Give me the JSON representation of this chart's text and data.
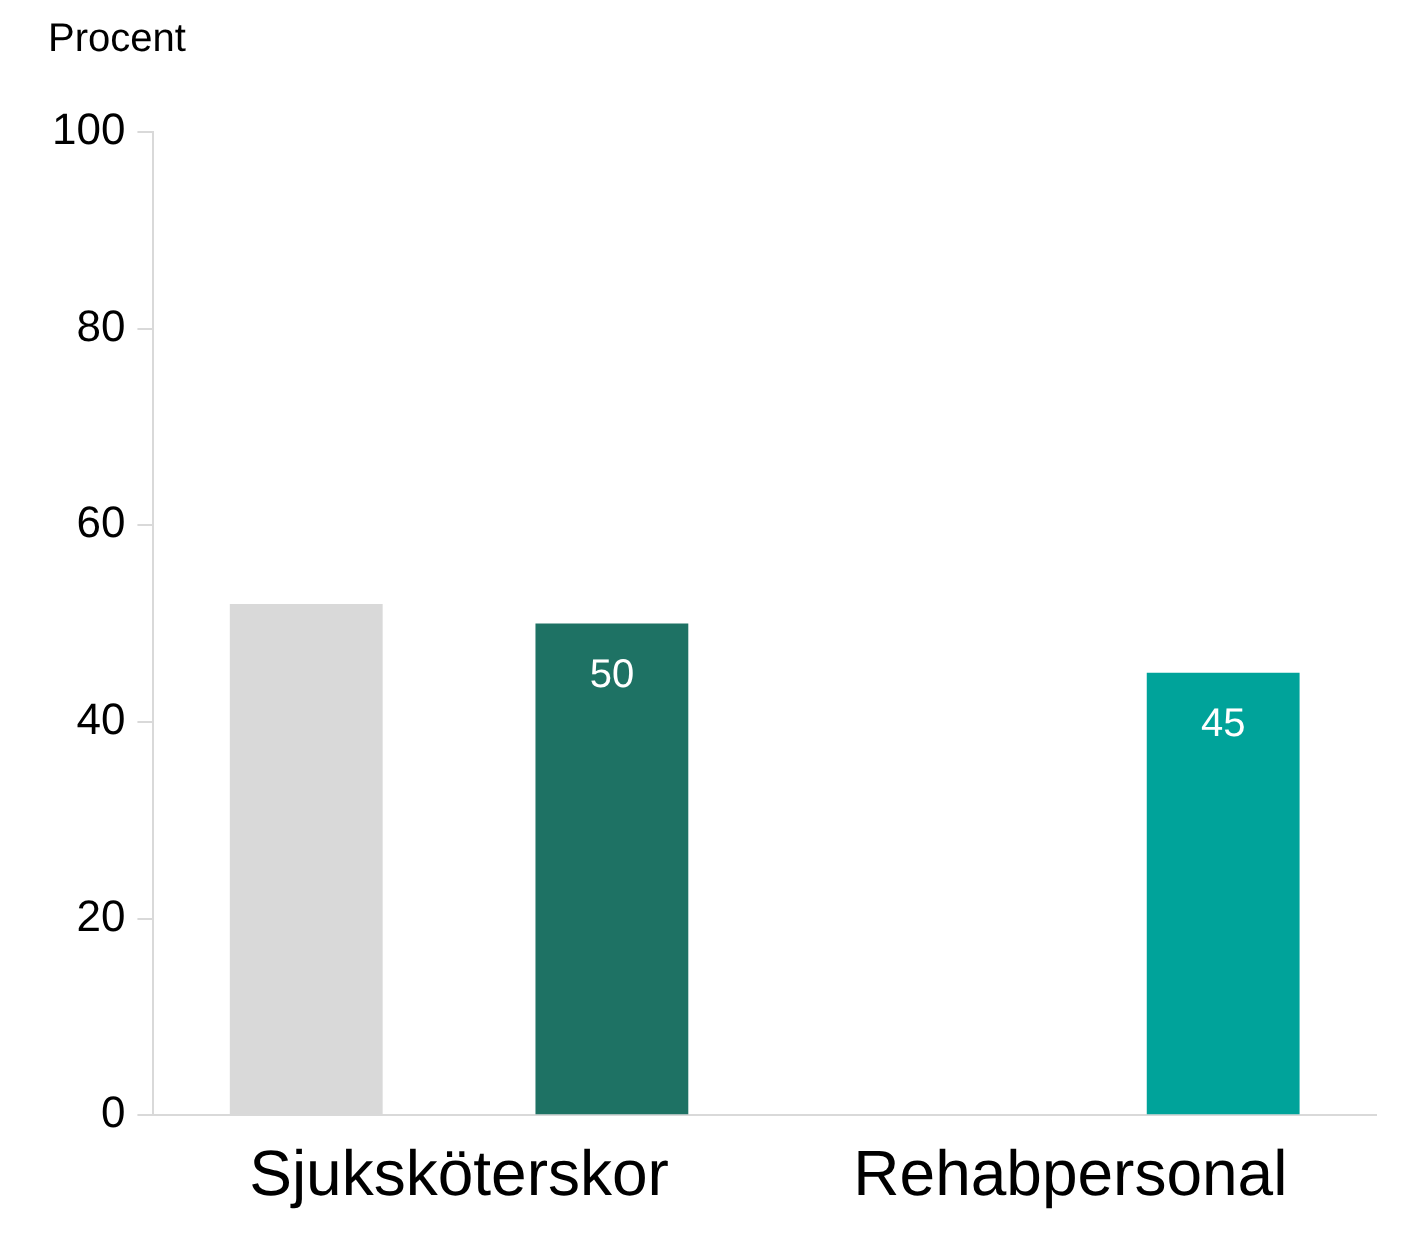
{
  "chart_data": {
    "type": "bar",
    "ylabel": "Procent",
    "categories": [
      "Sjuksköterskor",
      "Rehabpersonal"
    ],
    "series": [
      {
        "color": "#d9d9d9",
        "values": [
          52,
          null
        ]
      },
      {
        "colors": [
          "#1e7264",
          "#00a39a"
        ],
        "values": [
          50,
          45
        ],
        "value_labels": [
          "50",
          "45"
        ]
      }
    ],
    "ylim": [
      0,
      100
    ],
    "yticks": [
      0,
      20,
      40,
      60,
      80,
      100
    ],
    "grid": false,
    "legend": false
  }
}
